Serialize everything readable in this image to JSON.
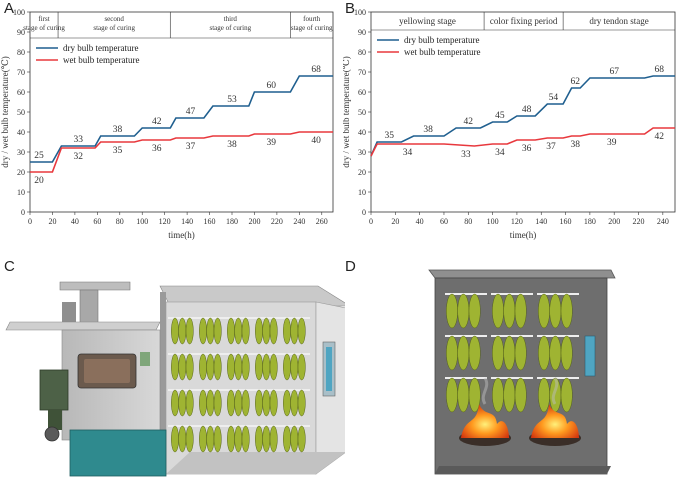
{
  "panels": {
    "a": "A",
    "b": "B",
    "c": "C",
    "d": "D"
  },
  "colors": {
    "dry": "#1f5f8f",
    "wet": "#e8383d"
  },
  "chart_data": [
    {
      "type": "line",
      "id": "A",
      "xlabel": "time(h)",
      "ylabel": "dry / wet bulb temperature(℃)",
      "xlim": [
        0,
        270
      ],
      "ylim": [
        0,
        100
      ],
      "xticks": [
        0,
        20,
        40,
        60,
        80,
        100,
        120,
        140,
        160,
        180,
        200,
        220,
        240,
        260
      ],
      "yticks": [
        0,
        10,
        20,
        30,
        40,
        50,
        60,
        70,
        80,
        90,
        100
      ],
      "stages": [
        {
          "label": "first stage of curing",
          "lines": [
            "first",
            "stage of curing"
          ],
          "start": 0,
          "end": 25
        },
        {
          "label": "second stage of curing",
          "lines": [
            "second",
            "stage of curing"
          ],
          "start": 25,
          "end": 125
        },
        {
          "label": "third stage of curing",
          "lines": [
            "third",
            "stage of curing"
          ],
          "start": 125,
          "end": 232
        },
        {
          "label": "fourth stage of curing",
          "lines": [
            "fourth",
            "stage of curing"
          ],
          "start": 232,
          "end": 270
        }
      ],
      "legend": {
        "position": "top-left",
        "dry": "dry bulb temperature",
        "wet": "wet bulb temperature"
      },
      "series": [
        {
          "name": "dry bulb temperature",
          "color": "#1f5f8f",
          "x": [
            0,
            20,
            28,
            58,
            63,
            93,
            100,
            125,
            130,
            155,
            163,
            195,
            200,
            232,
            240,
            270
          ],
          "y": [
            25,
            25,
            33,
            33,
            38,
            38,
            42,
            42,
            47,
            47,
            53,
            53,
            60,
            60,
            68,
            68
          ]
        },
        {
          "name": "wet bulb temperature",
          "color": "#e8383d",
          "x": [
            0,
            20,
            28,
            58,
            63,
            93,
            100,
            125,
            130,
            155,
            163,
            195,
            200,
            232,
            240,
            270
          ],
          "y": [
            20,
            20,
            32,
            32,
            35,
            35,
            36,
            36,
            37,
            37,
            38,
            38,
            39,
            39,
            40,
            40
          ]
        }
      ],
      "labels": [
        {
          "text": "25",
          "x": 8,
          "y": 25,
          "series": "dry",
          "pos": "above"
        },
        {
          "text": "20",
          "x": 8,
          "y": 20,
          "series": "wet",
          "pos": "below"
        },
        {
          "text": "33",
          "x": 43,
          "y": 33,
          "series": "dry",
          "pos": "above"
        },
        {
          "text": "32",
          "x": 43,
          "y": 32,
          "series": "wet",
          "pos": "below"
        },
        {
          "text": "38",
          "x": 78,
          "y": 38,
          "series": "dry",
          "pos": "above"
        },
        {
          "text": "35",
          "x": 78,
          "y": 35,
          "series": "wet",
          "pos": "below"
        },
        {
          "text": "42",
          "x": 113,
          "y": 42,
          "series": "dry",
          "pos": "above"
        },
        {
          "text": "36",
          "x": 113,
          "y": 36,
          "series": "wet",
          "pos": "below"
        },
        {
          "text": "47",
          "x": 143,
          "y": 47,
          "series": "dry",
          "pos": "above"
        },
        {
          "text": "37",
          "x": 143,
          "y": 37,
          "series": "wet",
          "pos": "below"
        },
        {
          "text": "53",
          "x": 180,
          "y": 53,
          "series": "dry",
          "pos": "above"
        },
        {
          "text": "38",
          "x": 180,
          "y": 38,
          "series": "wet",
          "pos": "below"
        },
        {
          "text": "60",
          "x": 215,
          "y": 60,
          "series": "dry",
          "pos": "above"
        },
        {
          "text": "39",
          "x": 215,
          "y": 39,
          "series": "wet",
          "pos": "below"
        },
        {
          "text": "68",
          "x": 255,
          "y": 68,
          "series": "dry",
          "pos": "above"
        },
        {
          "text": "40",
          "x": 255,
          "y": 40,
          "series": "wet",
          "pos": "below"
        }
      ]
    },
    {
      "type": "line",
      "id": "B",
      "xlabel": "time(h)",
      "ylabel": "dry / wet bulb temperature(℃)",
      "xlim": [
        0,
        250
      ],
      "ylim": [
        0,
        100
      ],
      "xticks": [
        0,
        20,
        40,
        60,
        80,
        100,
        120,
        140,
        160,
        180,
        200,
        220,
        240
      ],
      "yticks": [
        0,
        10,
        20,
        30,
        40,
        50,
        60,
        70,
        80,
        90,
        100
      ],
      "stages": [
        {
          "label": "yellowing stage",
          "lines": [
            "yellowing stage"
          ],
          "start": 0,
          "end": 93
        },
        {
          "label": "color fixing period",
          "lines": [
            "color fixing period"
          ],
          "start": 93,
          "end": 158
        },
        {
          "label": "dry tendon stage",
          "lines": [
            "dry tendon stage"
          ],
          "start": 158,
          "end": 250
        }
      ],
      "legend": {
        "position": "top-left",
        "dry": "dry bulb temperature",
        "wet": "wet bulb temperature"
      },
      "series": [
        {
          "name": "dry bulb temperature",
          "color": "#1f5f8f",
          "x": [
            0,
            5,
            25,
            35,
            60,
            70,
            90,
            100,
            112,
            120,
            135,
            145,
            158,
            165,
            172,
            180,
            225,
            232,
            250
          ],
          "y": [
            28,
            35,
            35,
            38,
            38,
            42,
            42,
            45,
            45,
            48,
            48,
            54,
            54,
            62,
            62,
            67,
            67,
            68,
            68
          ]
        },
        {
          "name": "wet bulb temperature",
          "color": "#e8383d",
          "x": [
            0,
            5,
            30,
            60,
            85,
            100,
            112,
            120,
            135,
            145,
            158,
            165,
            172,
            180,
            225,
            232,
            250
          ],
          "y": [
            28,
            34,
            34,
            34,
            33,
            34,
            34,
            36,
            36,
            37,
            37,
            38,
            38,
            39,
            39,
            42,
            42
          ]
        }
      ],
      "labels": [
        {
          "text": "35",
          "x": 15,
          "y": 35,
          "series": "dry",
          "pos": "above"
        },
        {
          "text": "34",
          "x": 30,
          "y": 34,
          "series": "wet",
          "pos": "below"
        },
        {
          "text": "38",
          "x": 47,
          "y": 38,
          "series": "dry",
          "pos": "above"
        },
        {
          "text": "42",
          "x": 80,
          "y": 42,
          "series": "dry",
          "pos": "above"
        },
        {
          "text": "33",
          "x": 78,
          "y": 33,
          "series": "wet",
          "pos": "below"
        },
        {
          "text": "45",
          "x": 106,
          "y": 45,
          "series": "dry",
          "pos": "above"
        },
        {
          "text": "34",
          "x": 106,
          "y": 34,
          "series": "wet",
          "pos": "below"
        },
        {
          "text": "48",
          "x": 128,
          "y": 48,
          "series": "dry",
          "pos": "above"
        },
        {
          "text": "36",
          "x": 128,
          "y": 36,
          "series": "wet",
          "pos": "below"
        },
        {
          "text": "54",
          "x": 150,
          "y": 54,
          "series": "dry",
          "pos": "above"
        },
        {
          "text": "37",
          "x": 148,
          "y": 37,
          "series": "wet",
          "pos": "below"
        },
        {
          "text": "62",
          "x": 168,
          "y": 62,
          "series": "dry",
          "pos": "above"
        },
        {
          "text": "38",
          "x": 168,
          "y": 38,
          "series": "wet",
          "pos": "below"
        },
        {
          "text": "67",
          "x": 200,
          "y": 67,
          "series": "dry",
          "pos": "above"
        },
        {
          "text": "39",
          "x": 198,
          "y": 39,
          "series": "wet",
          "pos": "below"
        },
        {
          "text": "68",
          "x": 237,
          "y": 68,
          "series": "dry",
          "pos": "above"
        },
        {
          "text": "42",
          "x": 237,
          "y": 42,
          "series": "wet",
          "pos": "below"
        }
      ]
    }
  ]
}
